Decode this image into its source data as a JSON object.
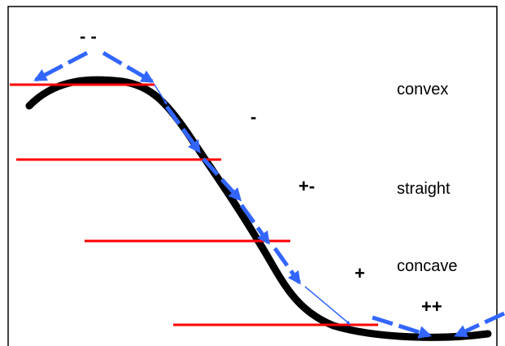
{
  "labels": {
    "top_sign": "- -",
    "convex": "convex",
    "minus": "-",
    "plus_minus": "+-",
    "straight": "straight",
    "plus": "+",
    "concave": "concave",
    "double_plus": "++"
  },
  "colors": {
    "curve": "#000000",
    "level_lines": "#ff0000",
    "arrows": "#3366ff",
    "frame": "#000000"
  }
}
